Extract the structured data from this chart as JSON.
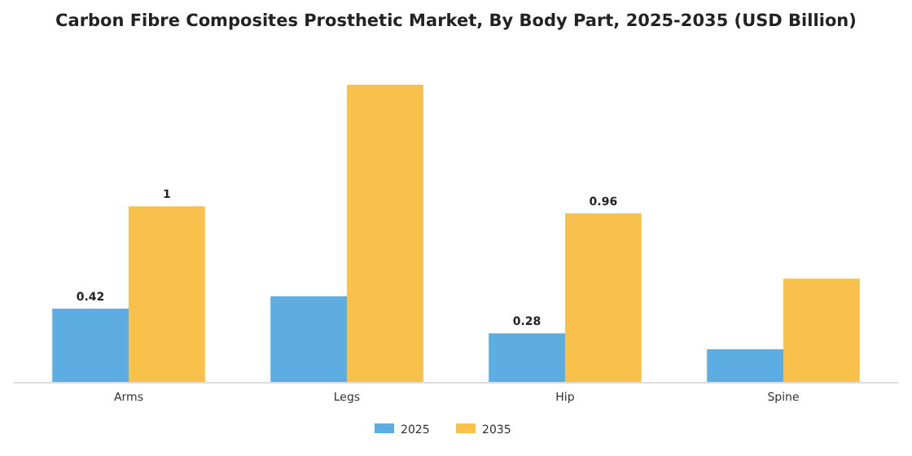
{
  "chart_data": {
    "type": "bar",
    "title": "Carbon Fibre Composites Prosthetic Market, By Body Part, 2025-2035 (USD Billion)",
    "categories": [
      "Arms",
      "Legs",
      "Hip",
      "Spine"
    ],
    "series": [
      {
        "name": "2025",
        "color": "#5dade2",
        "values": [
          0.42,
          0.49,
          0.28,
          0.19
        ],
        "value_labels": [
          "0.42",
          null,
          "0.28",
          null
        ]
      },
      {
        "name": "2035",
        "color": "#f7c14c",
        "values": [
          1,
          1.69,
          0.96,
          0.59
        ],
        "value_labels": [
          "1",
          null,
          "0.96",
          null
        ]
      }
    ],
    "legend": "bottom"
  }
}
